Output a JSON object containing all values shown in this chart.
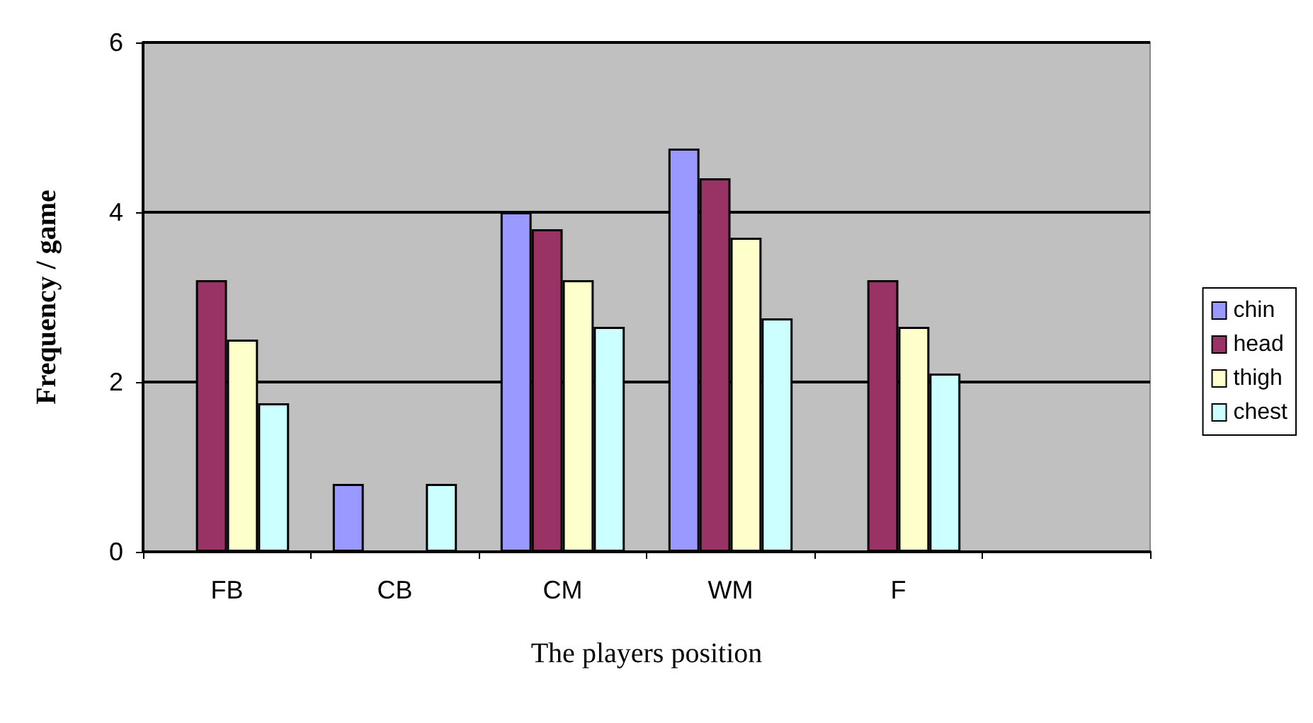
{
  "chart_data": {
    "type": "bar",
    "xlabel": "The players position",
    "ylabel": "Frequency / game",
    "categories": [
      "FB",
      "CB",
      "CM",
      "WM",
      "F",
      null
    ],
    "series": [
      {
        "name": "chin",
        "color": "#9999ff",
        "values": [
          null,
          0.8,
          4.0,
          4.75,
          null,
          null
        ]
      },
      {
        "name": "head",
        "color": "#993366",
        "values": [
          3.2,
          null,
          3.8,
          4.4,
          3.2,
          null
        ]
      },
      {
        "name": "thigh",
        "color": "#ffffcc",
        "values": [
          2.5,
          null,
          3.2,
          3.7,
          2.65,
          null
        ]
      },
      {
        "name": "chest",
        "color": "#ccffff",
        "values": [
          1.75,
          0.8,
          2.65,
          2.75,
          2.1,
          null
        ]
      }
    ],
    "ylim": [
      0,
      6
    ],
    "yticks": [
      0,
      2,
      4,
      6
    ],
    "grid": "y",
    "legend": "right"
  }
}
